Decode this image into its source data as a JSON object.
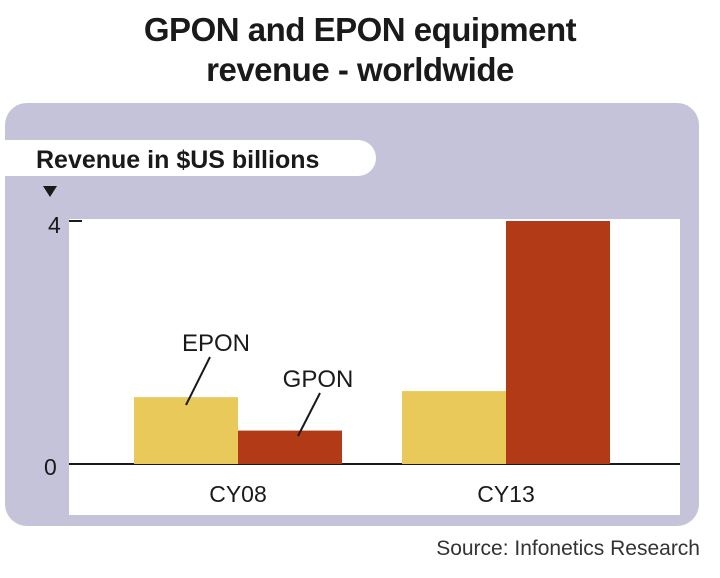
{
  "title_line1": "GPON and EPON equipment",
  "title_line2": "revenue - worldwide",
  "source": "Source: Infonetics Research",
  "colors": {
    "panel": "#c5c3d9",
    "plot": "#ffffff",
    "epon": "#e9c95a",
    "gpon": "#b23a16",
    "text": "#1a1a1a"
  },
  "chart_data": {
    "type": "bar",
    "title": "GPON and EPON equipment revenue - worldwide",
    "ylabel": "Revenue in $US billions",
    "xlabel": "",
    "categories": [
      "CY08",
      "CY13"
    ],
    "series": [
      {
        "name": "EPON",
        "values": [
          1.1,
          1.2
        ]
      },
      {
        "name": "GPON",
        "values": [
          0.55,
          4.0
        ]
      }
    ],
    "ylim": [
      0,
      4
    ],
    "yticks": [
      "0",
      "4"
    ],
    "annotations": [
      "EPON",
      "GPON"
    ]
  }
}
